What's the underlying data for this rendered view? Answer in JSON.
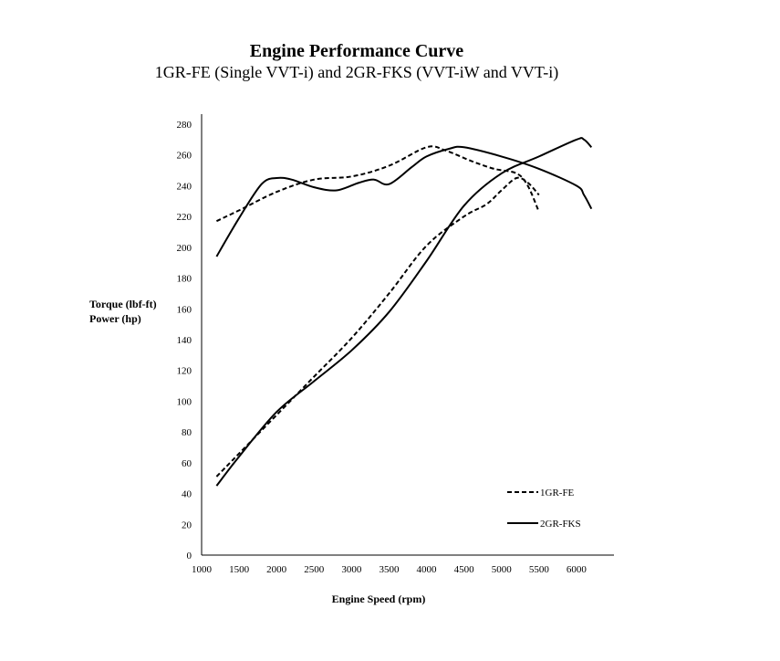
{
  "chart_data": {
    "type": "line",
    "title": "Engine Performance Curve",
    "subtitle": "1GR-FE (Single VVT-i) and 2GR-FKS (VVT-iW and VVT-i)",
    "xlabel": "Engine Speed (rpm)",
    "ylabel_lines": [
      "Torque (lbf-ft)",
      "Power (hp)"
    ],
    "xlim": [
      1000,
      6500
    ],
    "ylim": [
      0,
      280
    ],
    "x_ticks": [
      1000,
      1500,
      2000,
      2500,
      3000,
      3500,
      4000,
      4500,
      5000,
      5500,
      6000
    ],
    "y_ticks": [
      0,
      20,
      40,
      60,
      80,
      100,
      120,
      140,
      160,
      180,
      200,
      220,
      240,
      260,
      280
    ],
    "grid": false,
    "legend_position": "bottom-right",
    "series": [
      {
        "name": "1GR-FE",
        "style": "dashed",
        "color": "#000000",
        "curves": [
          {
            "quantity": "torque",
            "points": [
              [
                1200,
                217
              ],
              [
                1500,
                224
              ],
              [
                2000,
                236
              ],
              [
                2500,
                244
              ],
              [
                3000,
                246
              ],
              [
                3500,
                253
              ],
              [
                4000,
                265
              ],
              [
                4250,
                263
              ],
              [
                4600,
                256
              ],
              [
                4900,
                251
              ],
              [
                5200,
                248
              ],
              [
                5350,
                240
              ],
              [
                5500,
                223
              ]
            ]
          },
          {
            "quantity": "power",
            "points": [
              [
                1200,
                51
              ],
              [
                1500,
                66
              ],
              [
                2000,
                91
              ],
              [
                2500,
                116
              ],
              [
                3000,
                141
              ],
              [
                3500,
                170
              ],
              [
                4000,
                201
              ],
              [
                4500,
                220
              ],
              [
                4800,
                228
              ],
              [
                5000,
                237
              ],
              [
                5200,
                245
              ],
              [
                5350,
                242
              ],
              [
                5500,
                234
              ]
            ]
          }
        ]
      },
      {
        "name": "2GR-FKS",
        "style": "solid",
        "color": "#000000",
        "curves": [
          {
            "quantity": "torque",
            "points": [
              [
                1200,
                194
              ],
              [
                1500,
                219
              ],
              [
                1800,
                241
              ],
              [
                2000,
                245
              ],
              [
                2200,
                244
              ],
              [
                2500,
                239
              ],
              [
                2800,
                237
              ],
              [
                3100,
                242
              ],
              [
                3300,
                244
              ],
              [
                3500,
                241
              ],
              [
                3800,
                252
              ],
              [
                4000,
                259
              ],
              [
                4300,
                264
              ],
              [
                4500,
                265
              ],
              [
                5000,
                259
              ],
              [
                5500,
                251
              ],
              [
                6000,
                240
              ],
              [
                6100,
                234
              ],
              [
                6200,
                225
              ]
            ]
          },
          {
            "quantity": "power",
            "points": [
              [
                1200,
                45
              ],
              [
                1500,
                64
              ],
              [
                2000,
                93
              ],
              [
                2500,
                113
              ],
              [
                3000,
                133
              ],
              [
                3500,
                158
              ],
              [
                4000,
                191
              ],
              [
                4500,
                227
              ],
              [
                5000,
                248
              ],
              [
                5500,
                259
              ],
              [
                6000,
                270
              ],
              [
                6100,
                270
              ],
              [
                6200,
                265
              ]
            ]
          }
        ]
      }
    ]
  }
}
